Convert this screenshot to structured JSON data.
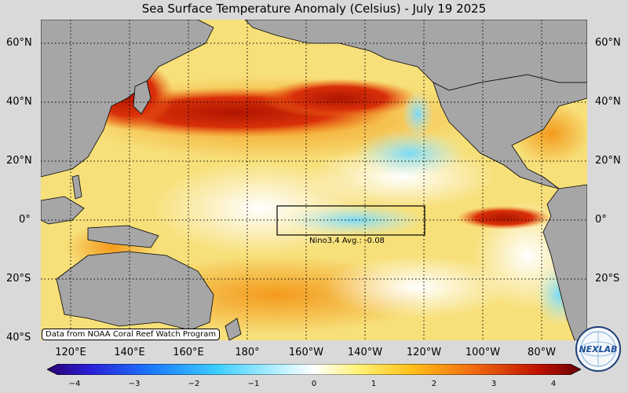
{
  "title": "Sea Surface Temperature Anomaly (Celsius) - July 19 2025",
  "lat_labels": [
    "60°N",
    "40°N",
    "20°N",
    "0°",
    "20°S",
    "40°S"
  ],
  "lon_labels": [
    "120°E",
    "140°E",
    "160°E",
    "180°",
    "160°W",
    "140°W",
    "120°W",
    "100°W",
    "80°W"
  ],
  "nino_box": {
    "label": "Nino3.4 Avg.: -0.08",
    "lon_range": [
      "170°W",
      "120°W"
    ],
    "lat_range": [
      "5°S",
      "5°N"
    ]
  },
  "credit": "Data from NOAA Coral Reef Watch Program",
  "colorbar": {
    "ticks": [
      "−4",
      "−3",
      "−2",
      "−1",
      "0",
      "1",
      "2",
      "3",
      "4"
    ],
    "min": -4,
    "max": 4
  },
  "logo_text": "NEXLAB",
  "colors": {
    "land": "#a6a6a6",
    "warm": "#c01a00",
    "cool": "#6fd8f5"
  }
}
